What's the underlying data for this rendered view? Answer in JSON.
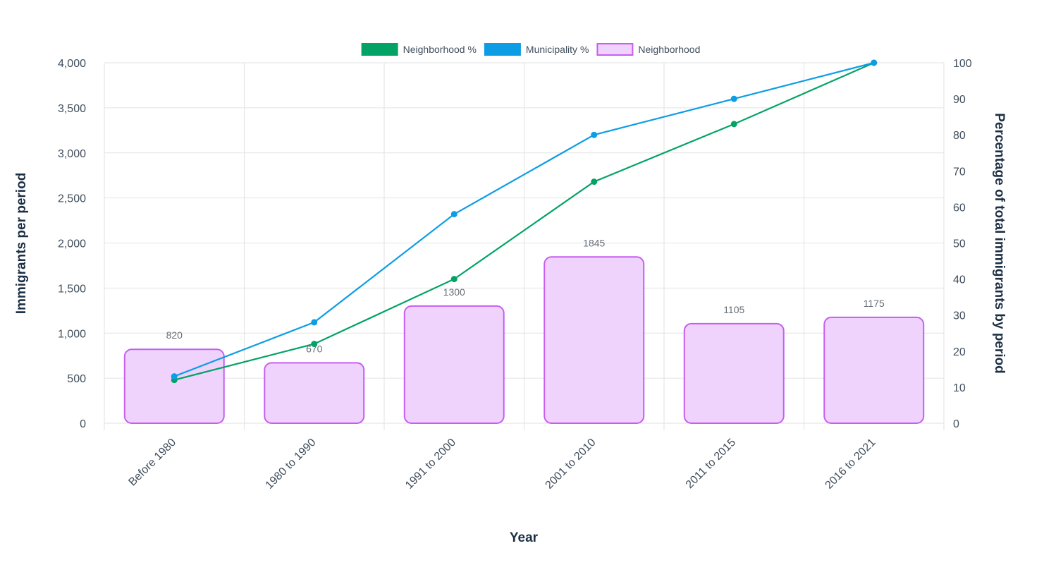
{
  "chart_data": {
    "type": "bar",
    "categories": [
      "Before 1980",
      "1980 to 1990",
      "1991 to 2000",
      "2001 to 2010",
      "2011 to 2015",
      "2016 to 2021"
    ],
    "bar_series": {
      "name": "Neighborhood",
      "values": [
        820,
        670,
        1300,
        1845,
        1105,
        1175
      ],
      "data_labels": [
        "820",
        "670",
        "1300",
        "1845",
        "1105",
        "1175"
      ],
      "fill_color": "#efd3fd",
      "border_color": "#c65ef0"
    },
    "line_series": [
      {
        "name": "Neighborhood %",
        "values": [
          12,
          22,
          40,
          67,
          83,
          100
        ],
        "color": "#03a366"
      },
      {
        "name": "Municipality %",
        "values": [
          13,
          28,
          58,
          80,
          90,
          100
        ],
        "color": "#0d9de5"
      }
    ],
    "legend": {
      "placement": "top-center",
      "entries": [
        {
          "label": "Neighborhood %",
          "color": "#03a366",
          "border": "#03a366"
        },
        {
          "label": "Municipality %",
          "color": "#0d9de5",
          "border": "#0d9de5"
        },
        {
          "label": "Neighborhood",
          "color": "#efd3fd",
          "border": "#c65ef0"
        }
      ]
    },
    "xlabel": "Year",
    "ylabel": "Immigrants per period",
    "y2label": "Percentage of total immigrants by period",
    "ylim": [
      0,
      4000
    ],
    "y_ticks": [
      "0",
      "500",
      "1,000",
      "1,500",
      "2,000",
      "2,500",
      "3,000",
      "3,500",
      "4,000"
    ],
    "y2lim": [
      0,
      100
    ],
    "y2_ticks": [
      "0",
      "10",
      "20",
      "30",
      "40",
      "50",
      "60",
      "70",
      "80",
      "90",
      "100"
    ],
    "grid": true
  }
}
